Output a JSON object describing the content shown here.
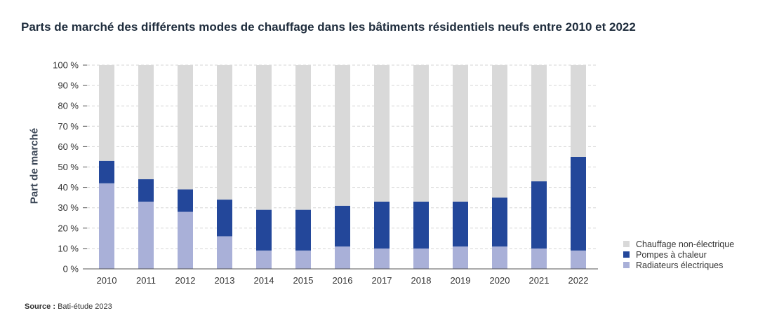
{
  "title": "Parts de marché des différents modes de chauffage dans les bâtiments résidentiels neufs entre 2010 et 2022",
  "source": {
    "label": "Source :",
    "text": "Bati-étude 2023"
  },
  "chart_data": {
    "type": "bar",
    "stacked": true,
    "title": "Parts de marché des différents modes de chauffage dans les bâtiments résidentiels neufs entre 2010 et 2022",
    "xlabel": "",
    "ylabel": "Part de marché",
    "ylim": [
      0,
      100
    ],
    "yticks": [
      "0 %",
      "10 %",
      "20 %",
      "30 %",
      "40 %",
      "50 %",
      "60 %",
      "70 %",
      "80 %",
      "90 %",
      "100 %"
    ],
    "grid": true,
    "legend_position": "bottom-right",
    "categories": [
      "2010",
      "2011",
      "2012",
      "2013",
      "2014",
      "2015",
      "2016",
      "2017",
      "2018",
      "2019",
      "2020",
      "2021",
      "2022"
    ],
    "series": [
      {
        "name": "Radiateurs électriques",
        "color": "#a9b0d8",
        "values": [
          42,
          33,
          28,
          16,
          9,
          9,
          11,
          10,
          10,
          11,
          11,
          10,
          9
        ]
      },
      {
        "name": "Pompes à chaleur",
        "color": "#23479a",
        "values": [
          11,
          11,
          11,
          18,
          20,
          20,
          20,
          23,
          23,
          22,
          24,
          33,
          46
        ]
      },
      {
        "name": "Chauffage non-électrique",
        "color": "#d9d9d9",
        "values": [
          47,
          56,
          61,
          66,
          71,
          71,
          69,
          67,
          67,
          67,
          65,
          57,
          45
        ]
      }
    ]
  }
}
